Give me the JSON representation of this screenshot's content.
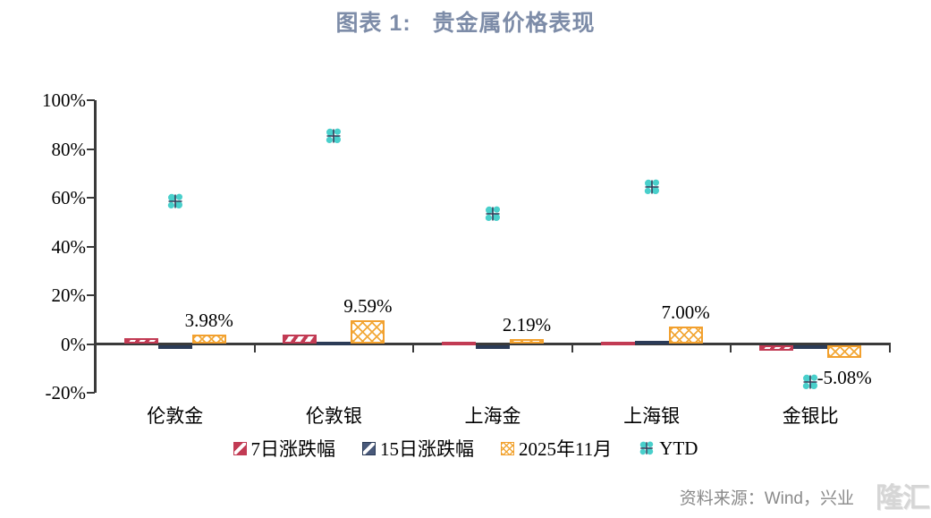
{
  "chart_data": {
    "type": "bar",
    "title": "图表 1:   贵金属价格表现",
    "title_color": "#7D8CA8",
    "categories": [
      "伦敦金",
      "伦敦银",
      "上海金",
      "上海银",
      "金银比"
    ],
    "series": [
      {
        "name": "7日涨跌幅",
        "key": "7d",
        "type": "bar",
        "color": "#C23B54",
        "pattern": "diagonal-stripe",
        "values": [
          2.3,
          3.7,
          0.6,
          0.8,
          -2.2
        ]
      },
      {
        "name": "15日涨跌幅",
        "key": "15d",
        "type": "bar",
        "color": "#2B3B57",
        "fill": "#8096B6",
        "pattern": "diagonal-dash",
        "values": [
          -1.5,
          0.7,
          -1.2,
          1.4,
          -1.5
        ]
      },
      {
        "name": "2025年11月",
        "key": "nov2025",
        "type": "bar",
        "color": "#F2A02E",
        "pattern": "crosshatch",
        "values": [
          3.98,
          9.59,
          2.19,
          7.0,
          -5.08
        ],
        "labels": [
          "3.98%",
          "9.59%",
          "2.19%",
          "7.00%",
          "-5.08%"
        ]
      },
      {
        "name": "YTD",
        "key": "ytd",
        "type": "scatter",
        "color": "#49CFCB",
        "marker": "clover",
        "marker_cross_color": "#2B3B57",
        "values": [
          58.5,
          85.5,
          53.3,
          64.3,
          -15.5
        ]
      }
    ],
    "ylim": [
      -20,
      100
    ],
    "ytick_values": [
      100,
      80,
      60,
      40,
      20,
      0,
      -20
    ],
    "ytick_labels": [
      "100%",
      "80%",
      "60%",
      "40%",
      "20%",
      "0%",
      "-20%"
    ],
    "grid": false,
    "legend_position": "bottom",
    "axis_color": "#3A3A3A"
  },
  "source": {
    "text": "资料来源：Wind，兴业",
    "watermark": "隆汇"
  }
}
